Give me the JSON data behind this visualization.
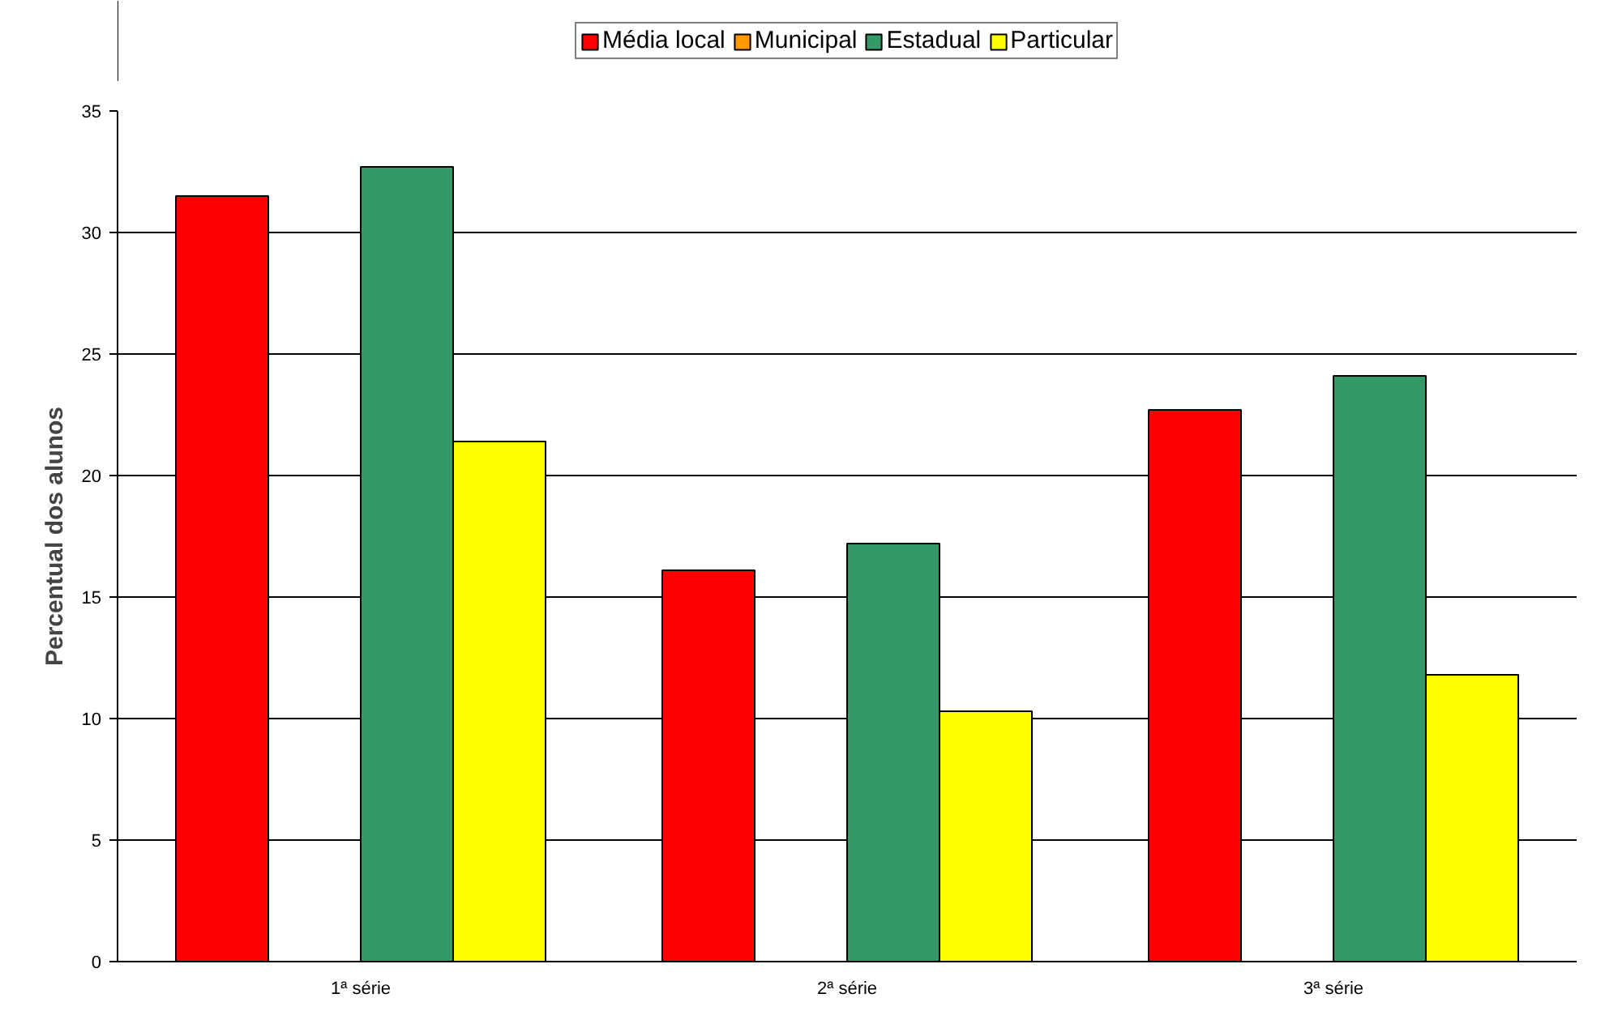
{
  "chart_data": {
    "type": "bar",
    "ylabel": "Percentual dos alunos",
    "categories": [
      "1ª série",
      "2ª série",
      "3ª série"
    ],
    "series": [
      {
        "name": "Média local",
        "color": "#ff0000",
        "values": [
          31.5,
          16.1,
          22.7
        ]
      },
      {
        "name": "Municipal",
        "color": "#ff9900",
        "values": [
          null,
          null,
          null
        ]
      },
      {
        "name": "Estadual",
        "color": "#339966",
        "values": [
          32.7,
          17.2,
          24.1
        ]
      },
      {
        "name": "Particular",
        "color": "#ffff00",
        "values": [
          21.4,
          10.3,
          11.8
        ]
      }
    ],
    "ylim": [
      0,
      35
    ],
    "yticks": [
      0,
      5,
      10,
      15,
      20,
      25,
      30,
      35
    ],
    "grid": "y",
    "legend": "top"
  }
}
